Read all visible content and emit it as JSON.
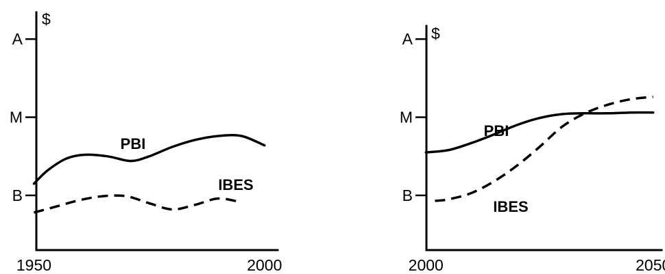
{
  "chart_data": [
    {
      "type": "line",
      "ylabel": "$",
      "y_ticks": [
        {
          "label": "B",
          "value": 1
        },
        {
          "label": "M",
          "value": 2
        },
        {
          "label": "A",
          "value": 3
        }
      ],
      "x_ticks": [
        1950,
        2000
      ],
      "xlim": [
        1948,
        2003
      ],
      "ylim": [
        0.3,
        3.5
      ],
      "series": [
        {
          "name": "PBI",
          "style": "solid",
          "x": [
            1950,
            1953,
            1957,
            1961,
            1966,
            1971,
            1975,
            1980,
            1985,
            1990,
            1995,
            2000
          ],
          "y": [
            1.15,
            1.32,
            1.47,
            1.52,
            1.5,
            1.44,
            1.5,
            1.62,
            1.71,
            1.76,
            1.76,
            1.64
          ]
        },
        {
          "name": "IBES",
          "style": "dashed",
          "x": [
            1950,
            1955,
            1960,
            1965,
            1970,
            1975,
            1980,
            1985,
            1990,
            1995
          ],
          "y": [
            0.78,
            0.86,
            0.94,
            0.99,
            0.99,
            0.9,
            0.82,
            0.88,
            0.96,
            0.91
          ]
        }
      ]
    },
    {
      "type": "line",
      "ylabel": "$",
      "y_ticks": [
        {
          "label": "B",
          "value": 1
        },
        {
          "label": "M",
          "value": 2
        },
        {
          "label": "A",
          "value": 3
        }
      ],
      "x_ticks": [
        2000,
        2050
      ],
      "xlim": [
        1998,
        2052
      ],
      "ylim": [
        0.3,
        3.5
      ],
      "series": [
        {
          "name": "PBI",
          "style": "solid",
          "x": [
            2000,
            2005,
            2010,
            2015,
            2020,
            2025,
            2030,
            2035,
            2040,
            2045,
            2050
          ],
          "y": [
            1.55,
            1.58,
            1.67,
            1.78,
            1.9,
            1.99,
            2.04,
            2.05,
            2.05,
            2.06,
            2.06
          ]
        },
        {
          "name": "IBES",
          "style": "dashed",
          "x": [
            2002,
            2005,
            2010,
            2015,
            2020,
            2025,
            2030,
            2035,
            2040,
            2045,
            2050
          ],
          "y": [
            0.93,
            0.95,
            1.03,
            1.18,
            1.38,
            1.62,
            1.88,
            2.05,
            2.16,
            2.23,
            2.26
          ]
        }
      ]
    }
  ]
}
